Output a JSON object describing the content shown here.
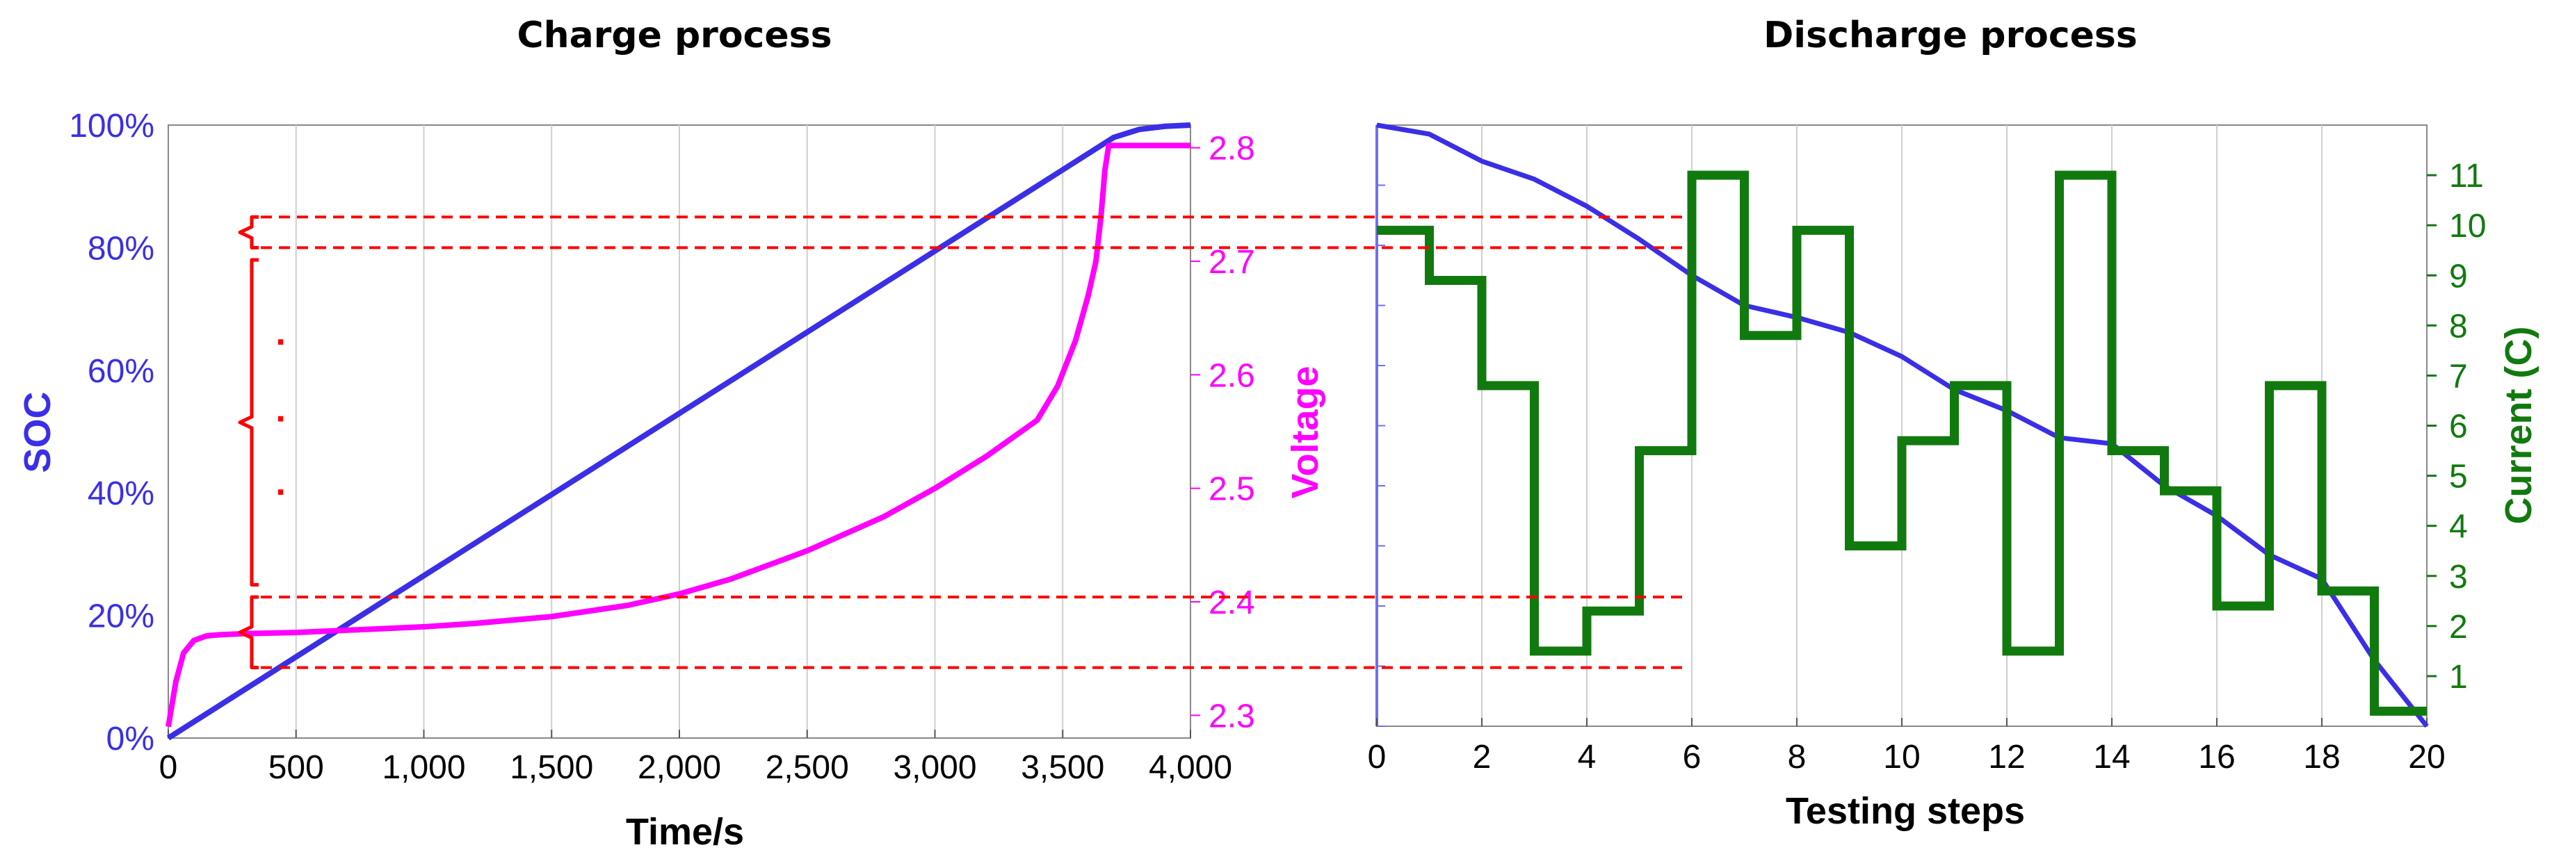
{
  "chart_data": [
    {
      "type": "line",
      "title": "Charge process",
      "xlabel": "Time/s",
      "ylabel": "SOC",
      "y2label": "Voltage",
      "xlim": [
        0,
        4000
      ],
      "ylim": [
        0,
        100
      ],
      "y2lim": [
        2.28,
        2.82
      ],
      "x_ticks": [
        "0",
        "500",
        "1,000",
        "1,500",
        "2,000",
        "2,500",
        "3,000",
        "3,500",
        "4,000"
      ],
      "y_ticks": [
        "0%",
        "20%",
        "40%",
        "60%",
        "80%",
        "100%"
      ],
      "y2_ticks": [
        "2.3",
        "2.4",
        "2.5",
        "2.6",
        "2.7",
        "2.8"
      ],
      "grid": "vertical",
      "series": [
        {
          "axis": "left",
          "color": "#3a2fe6",
          "x": [
            0,
            3700,
            3800,
            3900,
            4000
          ],
          "y": [
            0,
            98,
            99.3,
            99.8,
            100
          ]
        },
        {
          "axis": "right",
          "color": "#ff00ff",
          "x": [
            0,
            30,
            60,
            100,
            150,
            200,
            300,
            500,
            800,
            1000,
            1200,
            1500,
            1800,
            2000,
            2200,
            2500,
            2800,
            3000,
            3200,
            3400,
            3480,
            3550,
            3600,
            3630,
            3650,
            3665,
            3680,
            4000
          ],
          "y": [
            2.29,
            2.33,
            2.355,
            2.366,
            2.37,
            2.371,
            2.372,
            2.373,
            2.376,
            2.378,
            2.381,
            2.387,
            2.397,
            2.407,
            2.42,
            2.445,
            2.475,
            2.5,
            2.528,
            2.56,
            2.59,
            2.63,
            2.67,
            2.7,
            2.74,
            2.78,
            2.802,
            2.802
          ]
        }
      ],
      "annotations": {
        "brace_color": "#ff0000",
        "dots": [
          "·",
          "·",
          "·"
        ]
      }
    },
    {
      "type": "line",
      "title": "Discharge process",
      "xlabel": "Testing steps",
      "ylabel": "",
      "y2label": "Current (C)",
      "xlim": [
        0,
        20
      ],
      "ylim": [
        0,
        100
      ],
      "y2lim": [
        0,
        12
      ],
      "x_ticks": [
        "0",
        "2",
        "4",
        "6",
        "8",
        "10",
        "12",
        "14",
        "16",
        "18",
        "20"
      ],
      "y2_ticks": [
        "1",
        "2",
        "3",
        "4",
        "5",
        "6",
        "7",
        "8",
        "9",
        "10",
        "11"
      ],
      "grid": "vertical",
      "series": [
        {
          "axis": "left",
          "color": "#3a2fe6",
          "x": [
            0,
            1,
            2,
            3,
            4,
            5,
            6,
            7,
            8,
            9,
            10,
            11,
            12,
            13,
            14,
            15,
            16,
            17,
            18,
            19,
            20
          ],
          "y": [
            100,
            98.5,
            94,
            91,
            86.5,
            81,
            75,
            70,
            68,
            65.5,
            61.5,
            56,
            52.5,
            48,
            47,
            40,
            35,
            28.5,
            24.5,
            11,
            0
          ]
        },
        {
          "axis": "right",
          "type": "step",
          "color": "#117a0e",
          "x": [
            0,
            1,
            2,
            3,
            4,
            5,
            6,
            7,
            8,
            9,
            10,
            11,
            12,
            13,
            14,
            15,
            16,
            17,
            18,
            19
          ],
          "y": [
            9.9,
            8.9,
            6.8,
            1.5,
            2.3,
            5.5,
            11,
            7.8,
            9.9,
            3.6,
            5.7,
            6.8,
            1.5,
            11,
            5.5,
            4.7,
            2.4,
            6.8,
            2.7,
            0.3
          ]
        }
      ]
    }
  ]
}
